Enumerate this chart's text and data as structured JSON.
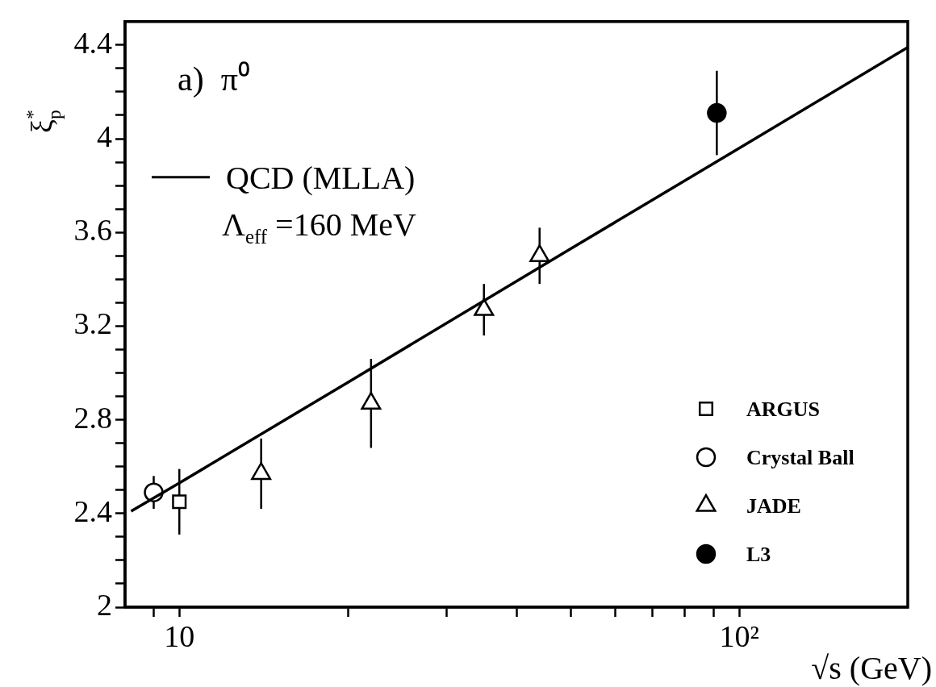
{
  "chart_data": {
    "type": "scatter",
    "title": "a)  π⁰",
    "xlabel": "√s (GeV)",
    "ylabel": "ξ$_{p}$$^{*}$",
    "annotations": [
      "Λ$_{eff}$ =160 MeV"
    ],
    "log": "x",
    "legend": "bottom right",
    "xlim": [
      8,
      200
    ],
    "xticks": [
      {
        "value": 9,
        "label": null
      },
      {
        "value": 10,
        "label": "10"
      },
      {
        "value": 20,
        "label": null
      },
      {
        "value": 30,
        "label": null
      },
      {
        "value": 40,
        "label": null
      },
      {
        "value": 50,
        "label": null
      },
      {
        "value": 60,
        "label": null
      },
      {
        "value": 70,
        "label": null
      },
      {
        "value": 80,
        "label": null
      },
      {
        "value": 90,
        "label": null
      },
      {
        "value": 100,
        "label": "10²"
      }
    ],
    "ylim": [
      2,
      4.5
    ],
    "yticks": [
      2,
      {
        "value": 2.1,
        "label": null
      },
      {
        "value": 2.2,
        "label": null
      },
      {
        "value": 2.3,
        "label": null
      },
      2.4,
      {
        "value": 2.5,
        "label": null
      },
      {
        "value": 2.6,
        "label": null
      },
      {
        "value": 2.7,
        "label": null
      },
      2.8,
      {
        "value": 2.9,
        "label": null
      },
      {
        "value": 3.0,
        "label": null
      },
      {
        "value": 3.1,
        "label": null
      },
      3.2,
      {
        "value": 3.3,
        "label": null
      },
      {
        "value": 3.4,
        "label": null
      },
      {
        "value": 3.5,
        "label": null
      },
      3.6,
      {
        "value": 3.7,
        "label": null
      },
      {
        "value": 3.8,
        "label": null
      },
      {
        "value": 3.9,
        "label": null
      },
      4,
      {
        "value": 4.1,
        "label": null
      },
      {
        "value": 4.2,
        "label": null
      },
      {
        "value": 4.3,
        "label": null
      },
      4.4
    ],
    "series": [
      {
        "name": "QCD (MLLA)",
        "type": "line",
        "color": "#000000",
        "x": [
          8.2,
          10,
          20,
          50,
          100,
          200
        ],
        "values": [
          2.41,
          2.53,
          2.96,
          3.53,
          3.96,
          4.39
        ]
      },
      {
        "name": "ARGUS",
        "marker": "square",
        "color": "#000000",
        "x": [
          10
        ],
        "values": [
          2.45
        ],
        "errors": [
          0.14
        ]
      },
      {
        "name": "Crystal Ball",
        "marker": "circle",
        "color": "#000000",
        "x": [
          9
        ],
        "values": [
          2.49
        ],
        "errors": [
          0.07
        ]
      },
      {
        "name": "JADE",
        "marker": "triangle",
        "color": "#000000",
        "x": [
          14,
          22,
          35,
          44
        ],
        "values": [
          2.57,
          2.87,
          3.27,
          3.5
        ],
        "errors": [
          0.15,
          0.19,
          0.11,
          0.12
        ]
      },
      {
        "name": "L3",
        "marker": "circle",
        "color": "#000000",
        "x": [
          91.2
        ],
        "values": [
          4.11
        ],
        "errors": [
          0.18
        ]
      }
    ]
  }
}
